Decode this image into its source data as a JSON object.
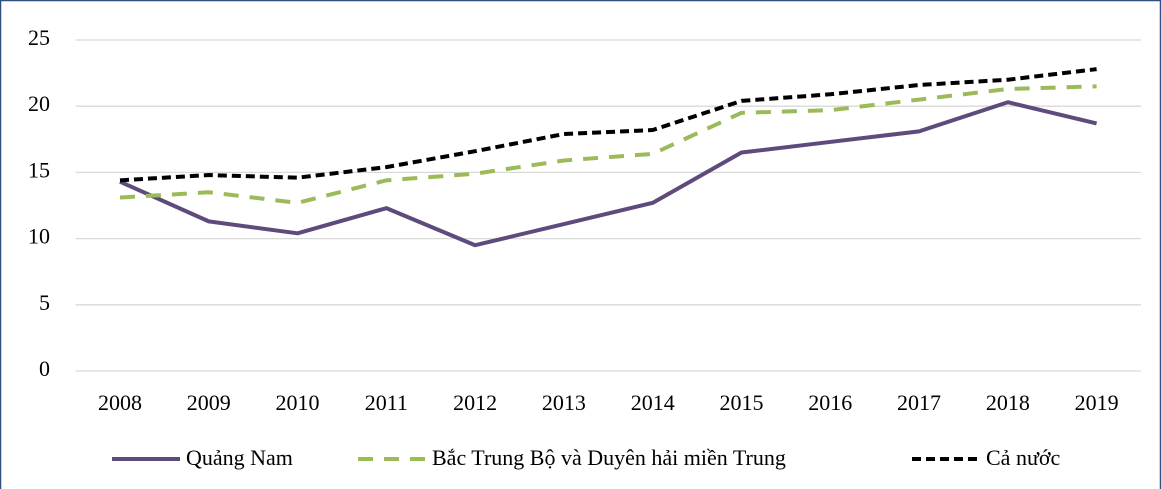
{
  "chart_data": {
    "type": "line",
    "categories": [
      "2008",
      "2009",
      "2010",
      "2011",
      "2012",
      "2013",
      "2014",
      "2015",
      "2016",
      "2017",
      "2018",
      "2019"
    ],
    "series": [
      {
        "name": "Quảng Nam",
        "color": "#5e4b7c",
        "values": [
          14.3,
          11.3,
          10.4,
          12.3,
          9.5,
          11.1,
          12.7,
          16.5,
          17.3,
          18.1,
          20.3,
          18.7
        ]
      },
      {
        "name": "Bắc Trung Bộ và Duyên hải miền Trung",
        "color": "#9bbb59",
        "values": [
          13.1,
          13.5,
          12.7,
          14.4,
          14.9,
          15.9,
          16.4,
          19.5,
          19.7,
          20.5,
          21.3,
          21.5
        ]
      },
      {
        "name": "Cả nước",
        "color": "#000000",
        "values": [
          14.4,
          14.8,
          14.6,
          15.4,
          16.6,
          17.9,
          18.2,
          20.4,
          20.9,
          21.6,
          22.0,
          22.8
        ]
      }
    ],
    "ylim": [
      0,
      25
    ],
    "yticks": [
      0,
      5,
      10,
      15,
      20,
      25
    ],
    "grid": true,
    "legend": "bottom"
  }
}
